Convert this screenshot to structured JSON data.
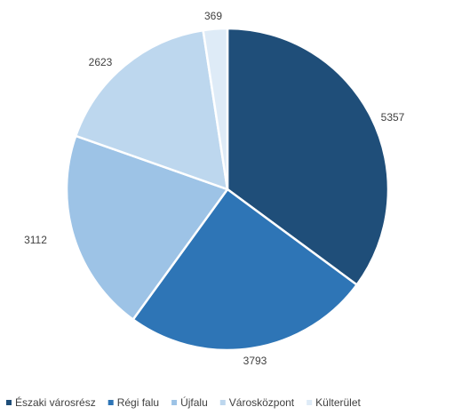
{
  "chart_data": {
    "type": "pie",
    "title": "",
    "categories": [
      "Északi városrész",
      "Régi falu",
      "Újfalu",
      "Városközpont",
      "Külterület"
    ],
    "values": [
      5357,
      3793,
      3112,
      2623,
      369
    ],
    "colors": [
      "#1f4e79",
      "#2e75b6",
      "#9dc3e6",
      "#bdd7ee",
      "#deebf7"
    ],
    "legend_position": "bottom",
    "data_labels": [
      "5357",
      "3793",
      "3112",
      "2623",
      "369"
    ]
  }
}
